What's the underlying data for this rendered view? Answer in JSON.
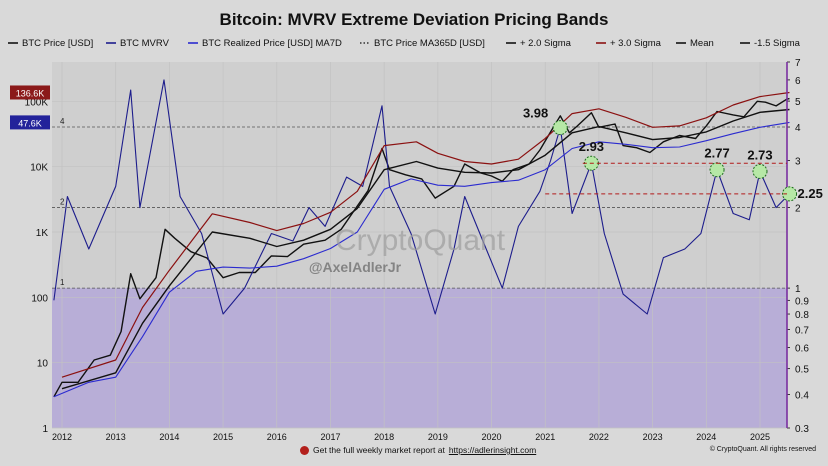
{
  "chart_data": {
    "type": "line",
    "title": "Bitcoin: MVRV Extreme Deviation Pricing Bands",
    "x_axis": {
      "ticks": [
        "2012",
        "2013",
        "2014",
        "2015",
        "2016",
        "2017",
        "2018",
        "2019",
        "2020",
        "2021",
        "2022",
        "2023",
        "2024",
        "2025"
      ]
    },
    "y_axis_left": {
      "scale": "log",
      "ticks": [
        "1",
        "10",
        "100",
        "1K",
        "10K",
        "100K"
      ],
      "range": [
        1,
        400000
      ]
    },
    "y_axis_right": {
      "scale": "log",
      "ticks": [
        "0.3",
        "0.4",
        "0.5",
        "0.6",
        "0.7",
        "0.8",
        "0.9",
        "1",
        "2",
        "3",
        "4",
        "5",
        "6",
        "7"
      ],
      "range": [
        0.3,
        7
      ]
    },
    "legend": {
      "placement": "top",
      "entries": [
        {
          "name": "BTC Price [USD]",
          "color": "#111111",
          "style": "solid"
        },
        {
          "name": "BTC MVRV",
          "color": "#1d1d8c",
          "style": "solid"
        },
        {
          "name": "BTC Realized Price [USD] MA7D",
          "color": "#2b2bcf",
          "style": "solid"
        },
        {
          "name": "BTC Price MA365D [USD]",
          "color": "#333333",
          "style": "dotted"
        },
        {
          "name": "+ 2.0 Sigma",
          "color": "#111111",
          "style": "solid"
        },
        {
          "name": "+ 3.0 Sigma",
          "color": "#8b1111",
          "style": "solid"
        },
        {
          "name": "Mean",
          "color": "#111111",
          "style": "solid"
        },
        {
          "name": "-1.5 Sigma",
          "color": "#111111",
          "style": "solid"
        }
      ]
    },
    "price_badges": [
      {
        "text": "136.6K",
        "color": "#8b1a1a"
      },
      {
        "text": "47.6K",
        "color": "#22229a"
      }
    ],
    "reference_lines": [
      {
        "label": "4",
        "value": 4
      },
      {
        "label": "2",
        "value": 2
      },
      {
        "label": "1",
        "value": 1
      }
    ],
    "annotations": [
      "3.98",
      "2.93",
      "2.77",
      "2.73",
      "2.25"
    ],
    "series": [
      {
        "name": "BTC Price [USD]",
        "x": [
          2011.85,
          2012.0,
          2012.3,
          2012.6,
          2012.9,
          2013.1,
          2013.28,
          2013.45,
          2013.75,
          2013.92,
          2014.1,
          2014.4,
          2014.7,
          2015.0,
          2015.3,
          2015.6,
          2015.9,
          2016.2,
          2016.5,
          2016.9,
          2017.2,
          2017.5,
          2017.7,
          2017.96,
          2018.1,
          2018.4,
          2018.7,
          2018.95,
          2019.3,
          2019.5,
          2019.8,
          2020.0,
          2020.2,
          2020.4,
          2020.7,
          2020.9,
          2021.1,
          2021.28,
          2021.45,
          2021.6,
          2021.86,
          2022.0,
          2022.3,
          2022.45,
          2022.7,
          2022.95,
          2023.2,
          2023.5,
          2023.8,
          2024.0,
          2024.2,
          2024.5,
          2024.7,
          2024.95,
          2025.1,
          2025.3,
          2025.5,
          2025.55
        ],
        "values": [
          3,
          5,
          5,
          11,
          13,
          30,
          230,
          95,
          200,
          1100,
          800,
          500,
          400,
          200,
          240,
          240,
          430,
          420,
          650,
          750,
          1100,
          2500,
          4300,
          19000,
          9000,
          7500,
          6500,
          3300,
          5000,
          11000,
          8000,
          7200,
          6000,
          9000,
          11000,
          18000,
          34000,
          60000,
          33000,
          42000,
          67000,
          40000,
          45000,
          21000,
          19500,
          16500,
          24000,
          30000,
          27000,
          42000,
          70000,
          62000,
          58000,
          100000,
          97000,
          85000,
          108000,
          110000
        ]
      },
      {
        "name": "BTC MVRV",
        "x": [
          2011.85,
          2012.1,
          2012.5,
          2013.0,
          2013.28,
          2013.45,
          2013.9,
          2014.2,
          2014.6,
          2015.0,
          2015.4,
          2015.9,
          2016.3,
          2016.6,
          2016.9,
          2017.3,
          2017.6,
          2017.96,
          2018.1,
          2018.5,
          2018.95,
          2019.3,
          2019.5,
          2019.9,
          2020.2,
          2020.5,
          2020.9,
          2021.1,
          2021.28,
          2021.5,
          2021.86,
          2022.1,
          2022.45,
          2022.9,
          2023.2,
          2023.6,
          2023.9,
          2024.2,
          2024.5,
          2024.8,
          2025.0,
          2025.3,
          2025.55
        ],
        "values": [
          0.9,
          2.2,
          1.4,
          2.4,
          5.5,
          2.0,
          6.0,
          2.2,
          1.6,
          0.8,
          1.0,
          1.6,
          1.5,
          2.0,
          1.7,
          2.6,
          2.4,
          4.8,
          2.4,
          1.6,
          0.8,
          1.4,
          2.2,
          1.4,
          1.0,
          1.7,
          2.3,
          3.0,
          3.98,
          1.9,
          2.93,
          1.6,
          0.95,
          0.8,
          1.3,
          1.4,
          1.6,
          2.77,
          1.9,
          1.8,
          2.73,
          2.0,
          2.25
        ]
      },
      {
        "name": "BTC Realized Price [USD] MA7D",
        "x": [
          2011.85,
          2012.5,
          2013.0,
          2013.5,
          2014.0,
          2014.5,
          2015.0,
          2015.5,
          2016.0,
          2016.5,
          2017.0,
          2017.5,
          2018.0,
          2018.5,
          2019.0,
          2019.5,
          2020.0,
          2020.5,
          2021.0,
          2021.5,
          2022.0,
          2022.5,
          2023.0,
          2023.5,
          2024.0,
          2024.5,
          2025.0,
          2025.55
        ],
        "values": [
          3,
          5,
          6,
          25,
          120,
          250,
          290,
          280,
          300,
          390,
          560,
          1000,
          4500,
          6500,
          5200,
          5000,
          5700,
          6200,
          9000,
          19000,
          24000,
          22000,
          19500,
          20000,
          25000,
          32000,
          40000,
          47600
        ]
      },
      {
        "name": "+ 3.0 Sigma",
        "x": [
          2012.0,
          2013.0,
          2013.5,
          2014.0,
          2014.8,
          2015.5,
          2016.0,
          2016.5,
          2017.0,
          2017.5,
          2018.0,
          2018.6,
          2019.0,
          2019.5,
          2020.0,
          2020.5,
          2021.0,
          2021.5,
          2022.0,
          2022.5,
          2023.0,
          2023.5,
          2024.0,
          2024.5,
          2025.0,
          2025.55
        ],
        "values": [
          6,
          11,
          70,
          260,
          1900,
          1400,
          1050,
          1350,
          2000,
          4200,
          21000,
          24000,
          16000,
          12000,
          11000,
          13000,
          27000,
          65000,
          77000,
          57000,
          40000,
          42000,
          56000,
          88000,
          118000,
          136600
        ]
      },
      {
        "name": "Mean",
        "x": [
          2012.0,
          2013.0,
          2013.5,
          2014.0,
          2014.8,
          2015.5,
          2016.0,
          2016.5,
          2017.0,
          2017.5,
          2018.0,
          2018.6,
          2019.0,
          2019.5,
          2020.0,
          2020.5,
          2021.0,
          2021.5,
          2022.0,
          2022.5,
          2023.0,
          2023.5,
          2024.0,
          2024.5,
          2025.0,
          2025.55
        ],
        "values": [
          4,
          7,
          40,
          150,
          1000,
          800,
          600,
          750,
          1100,
          2300,
          9000,
          12000,
          9500,
          8200,
          8000,
          9000,
          15000,
          33000,
          41000,
          33000,
          26000,
          28000,
          34000,
          50000,
          68000,
          75000
        ]
      }
    ]
  },
  "footer": {
    "report_text": "Get the full weekly market report at",
    "report_link": "https://adlerinsight.com",
    "copyright": "© CryptoQuant. All rights reserved"
  },
  "watermark": {
    "brand": "CryptoQuant",
    "handle": "@AxelAdlerJr"
  }
}
